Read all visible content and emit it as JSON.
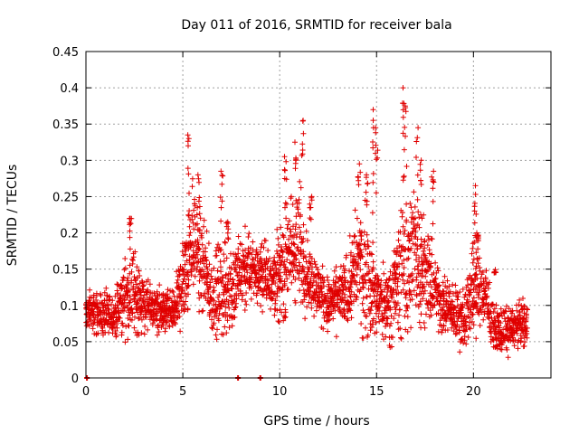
{
  "chart_data": {
    "type": "scatter",
    "title": "Day 011 of 2016, SRMTID for receiver bala",
    "xlabel": "GPS time / hours",
    "ylabel": "SRMTID / TECUs",
    "xlim": [
      0,
      24
    ],
    "ylim": [
      0,
      0.45
    ],
    "x_ticks": [
      0,
      5,
      10,
      15,
      20
    ],
    "x_tick_labels": [
      "0",
      "5",
      "10",
      "15",
      "20"
    ],
    "y_ticks": [
      0,
      0.05,
      0.1,
      0.15,
      0.2,
      0.25,
      0.3,
      0.35,
      0.4,
      0.45
    ],
    "y_tick_labels": [
      "0",
      "0.05",
      "0.1",
      "0.15",
      "0.2",
      "0.25",
      "0.3",
      "0.35",
      "0.4",
      "0.45"
    ],
    "grid": true,
    "marker": "plus",
    "color": "#e00000",
    "series": [
      {
        "name": "SRMTID",
        "approx_profile": {
          "x": [
            0.0,
            0.5,
            1.0,
            1.5,
            2.0,
            2.5,
            3.0,
            3.5,
            4.0,
            4.5,
            5.0,
            5.5,
            6.0,
            6.5,
            7.0,
            7.5,
            8.0,
            8.5,
            9.0,
            9.5,
            10.0,
            10.5,
            11.0,
            11.5,
            12.0,
            12.5,
            13.0,
            13.5,
            14.0,
            14.5,
            15.0,
            15.5,
            16.0,
            16.5,
            17.0,
            17.5,
            18.0,
            18.5,
            19.0,
            19.5,
            20.0,
            20.5,
            21.0,
            21.5,
            22.0,
            22.5,
            22.8
          ],
          "median": [
            0.09,
            0.09,
            0.085,
            0.085,
            0.11,
            0.12,
            0.1,
            0.095,
            0.09,
            0.09,
            0.13,
            0.2,
            0.15,
            0.11,
            0.12,
            0.12,
            0.14,
            0.15,
            0.145,
            0.14,
            0.14,
            0.17,
            0.18,
            0.14,
            0.12,
            0.1,
            0.11,
            0.12,
            0.16,
            0.14,
            0.11,
            0.1,
            0.13,
            0.16,
            0.17,
            0.15,
            0.12,
            0.1,
            0.09,
            0.08,
            0.13,
            0.12,
            0.07,
            0.065,
            0.07,
            0.075,
            0.075
          ],
          "spread": [
            0.03,
            0.03,
            0.03,
            0.03,
            0.05,
            0.06,
            0.04,
            0.03,
            0.03,
            0.03,
            0.06,
            0.08,
            0.07,
            0.05,
            0.07,
            0.06,
            0.06,
            0.05,
            0.04,
            0.05,
            0.06,
            0.08,
            0.09,
            0.05,
            0.04,
            0.04,
            0.04,
            0.05,
            0.08,
            0.09,
            0.05,
            0.05,
            0.07,
            0.12,
            0.09,
            0.07,
            0.05,
            0.04,
            0.04,
            0.04,
            0.07,
            0.05,
            0.03,
            0.03,
            0.03,
            0.03,
            0.03
          ]
        },
        "peaks": [
          {
            "x": 2.3,
            "y": 0.22
          },
          {
            "x": 5.3,
            "y": 0.335
          },
          {
            "x": 5.8,
            "y": 0.28
          },
          {
            "x": 7.0,
            "y": 0.285
          },
          {
            "x": 7.3,
            "y": 0.215
          },
          {
            "x": 10.3,
            "y": 0.305
          },
          {
            "x": 10.8,
            "y": 0.325
          },
          {
            "x": 11.2,
            "y": 0.355
          },
          {
            "x": 11.6,
            "y": 0.25
          },
          {
            "x": 14.1,
            "y": 0.295
          },
          {
            "x": 14.5,
            "y": 0.28
          },
          {
            "x": 14.8,
            "y": 0.37
          },
          {
            "x": 15.0,
            "y": 0.345
          },
          {
            "x": 16.4,
            "y": 0.4
          },
          {
            "x": 16.5,
            "y": 0.375
          },
          {
            "x": 17.1,
            "y": 0.345
          },
          {
            "x": 17.3,
            "y": 0.3
          },
          {
            "x": 17.9,
            "y": 0.285
          },
          {
            "x": 20.1,
            "y": 0.265
          },
          {
            "x": 20.2,
            "y": 0.2
          },
          {
            "x": 21.1,
            "y": 0.145
          }
        ],
        "zero_points": [
          {
            "x": 0.05,
            "y": 0
          },
          {
            "x": 7.85,
            "y": 0
          },
          {
            "x": 9.0,
            "y": 0
          }
        ]
      }
    ]
  }
}
